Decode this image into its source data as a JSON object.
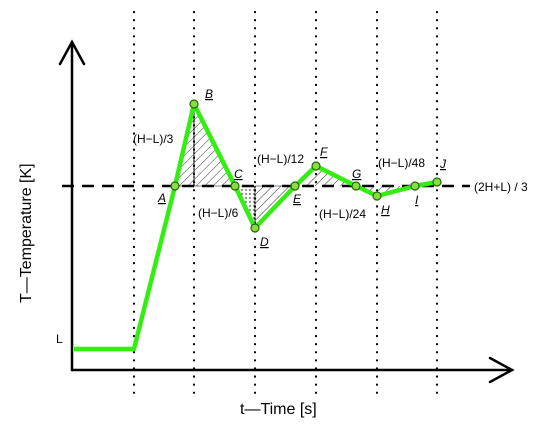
{
  "axes": {
    "x_label": "t—Time [s]",
    "y_label": "T—Temperature [K]",
    "low_label": "L",
    "setpoint_label": "(2H+L) / 3"
  },
  "deltas": [
    {
      "text": "(H−L)/3"
    },
    {
      "text": "(H−L)/6"
    },
    {
      "text": "(H−L)/12"
    },
    {
      "text": "(H−L)/24"
    },
    {
      "text": "(H−L)/48"
    }
  ],
  "points": [
    {
      "name": "A"
    },
    {
      "name": "B"
    },
    {
      "name": "C"
    },
    {
      "name": "D"
    },
    {
      "name": "E"
    },
    {
      "name": "F"
    },
    {
      "name": "G"
    },
    {
      "name": "H"
    },
    {
      "name": "I"
    },
    {
      "name": "J"
    }
  ],
  "colors": {
    "curve": "#33ee11",
    "marker_fill": "#88dd44",
    "marker_stroke": "#226600",
    "axis": "#000000"
  }
}
